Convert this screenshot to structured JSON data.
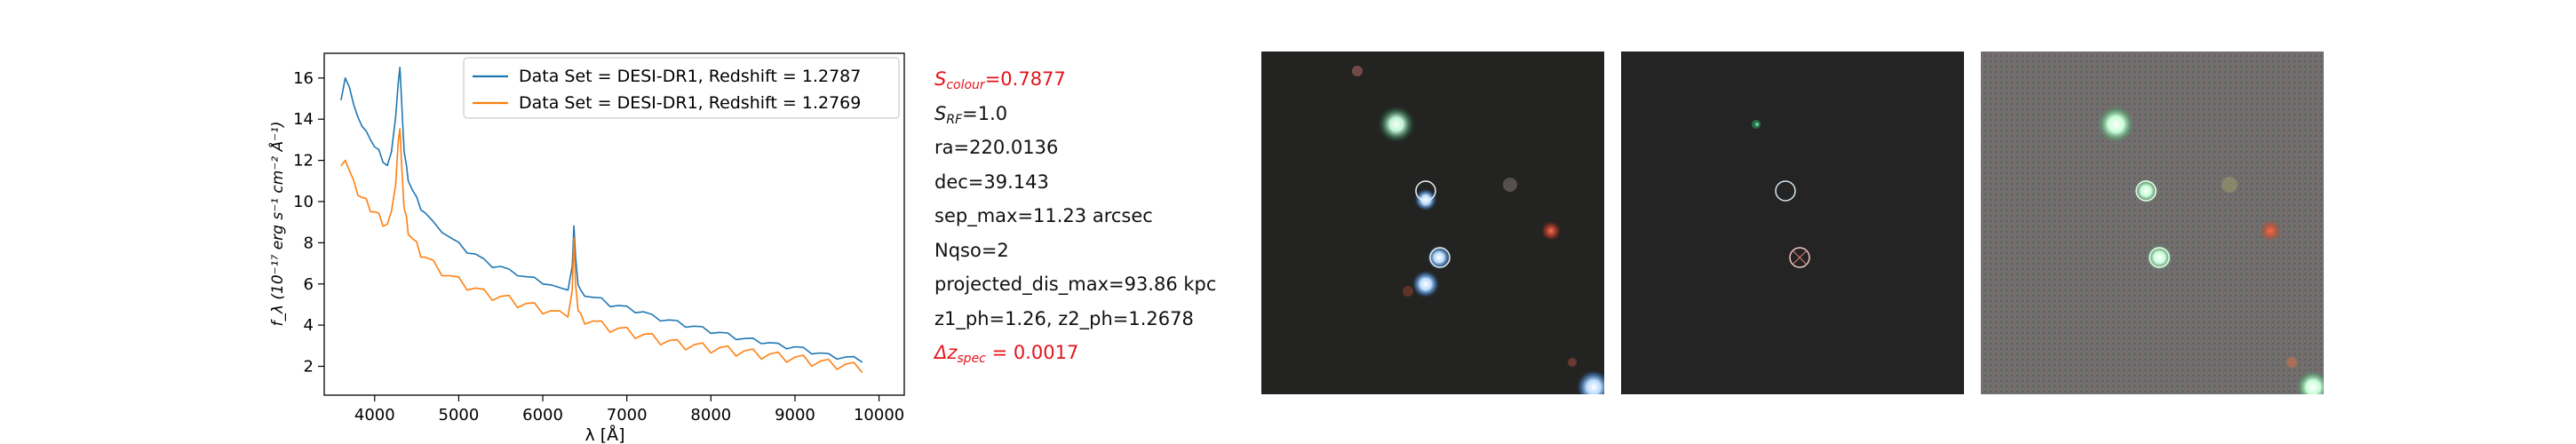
{
  "chart_data": {
    "type": "line",
    "xlabel": "λ [Å]",
    "ylabel": "f_λ (10⁻¹⁷ erg s⁻¹ cm⁻² Å⁻¹)",
    "xlim": [
      3400,
      10300
    ],
    "ylim": [
      0.6,
      17.2
    ],
    "xticks": [
      4000,
      5000,
      6000,
      7000,
      8000,
      9000,
      10000
    ],
    "yticks": [
      2,
      4,
      6,
      8,
      10,
      12,
      14,
      16
    ],
    "legend": "top-right",
    "grid": false,
    "series": [
      {
        "name": "Data Set = DESI-DR1, Redshift = 1.2787",
        "color": "#1f77b4",
        "x": [
          3600,
          3650,
          3700,
          3750,
          3800,
          3850,
          3900,
          3950,
          4000,
          4050,
          4100,
          4150,
          4200,
          4250,
          4280,
          4300,
          4320,
          4350,
          4380,
          4400,
          4450,
          4500,
          4550,
          4600,
          4700,
          4800,
          4900,
          5000,
          5100,
          5200,
          5300,
          5400,
          5500,
          5600,
          5700,
          5800,
          5900,
          6000,
          6100,
          6200,
          6300,
          6350,
          6370,
          6390,
          6420,
          6450,
          6500,
          6600,
          6700,
          6800,
          6900,
          7000,
          7100,
          7200,
          7300,
          7400,
          7500,
          7600,
          7700,
          7800,
          7900,
          8000,
          8100,
          8200,
          8300,
          8400,
          8500,
          8600,
          8700,
          8800,
          8900,
          9000,
          9100,
          9200,
          9300,
          9400,
          9500,
          9600,
          9700,
          9800
        ],
        "y": [
          14.8,
          16.1,
          15.5,
          14.6,
          14.2,
          13.6,
          13.3,
          13.1,
          12.6,
          12.4,
          12.0,
          11.7,
          12.3,
          14.2,
          15.7,
          16.4,
          15.0,
          12.4,
          11.6,
          11.1,
          10.5,
          10.1,
          9.7,
          9.4,
          8.9,
          8.6,
          8.2,
          7.9,
          7.6,
          7.4,
          7.1,
          6.9,
          6.8,
          6.6,
          6.5,
          6.3,
          6.2,
          6.1,
          5.9,
          5.7,
          5.8,
          6.8,
          8.7,
          7.4,
          5.9,
          5.6,
          5.5,
          5.3,
          5.2,
          5.0,
          4.9,
          4.8,
          4.7,
          4.6,
          4.4,
          4.3,
          4.2,
          4.1,
          4.0,
          3.9,
          3.8,
          3.7,
          3.6,
          3.5,
          3.4,
          3.3,
          3.25,
          3.2,
          3.1,
          3.0,
          2.95,
          2.9,
          2.8,
          2.7,
          2.6,
          2.5,
          2.45,
          2.4,
          2.35,
          2.3
        ]
      },
      {
        "name": "Data Set = DESI-DR1, Redshift = 1.2769",
        "color": "#ff7f0e",
        "x": [
          3600,
          3650,
          3700,
          3750,
          3800,
          3850,
          3900,
          3950,
          4000,
          4050,
          4100,
          4150,
          4200,
          4250,
          4280,
          4300,
          4320,
          4350,
          4380,
          4400,
          4450,
          4500,
          4550,
          4600,
          4700,
          4800,
          4900,
          5000,
          5100,
          5200,
          5300,
          5400,
          5500,
          5600,
          5700,
          5800,
          5900,
          6000,
          6100,
          6200,
          6300,
          6350,
          6370,
          6390,
          6420,
          6450,
          6500,
          6600,
          6700,
          6800,
          6900,
          7000,
          7100,
          7200,
          7300,
          7400,
          7500,
          7600,
          7700,
          7800,
          7900,
          8000,
          8100,
          8200,
          8300,
          8400,
          8500,
          8600,
          8700,
          8800,
          8900,
          9000,
          9100,
          9200,
          9300,
          9400,
          9500,
          9600,
          9700,
          9800
        ],
        "y": [
          11.5,
          12.2,
          11.4,
          10.8,
          10.5,
          10.1,
          9.9,
          9.7,
          9.4,
          9.2,
          9.0,
          8.8,
          9.3,
          11.0,
          12.8,
          13.3,
          12.0,
          9.6,
          9.0,
          8.6,
          8.1,
          7.8,
          7.5,
          7.2,
          6.9,
          6.6,
          6.3,
          6.1,
          5.9,
          5.7,
          5.5,
          5.4,
          5.3,
          5.2,
          5.05,
          4.95,
          4.85,
          4.75,
          4.6,
          4.45,
          4.6,
          5.6,
          8.0,
          6.2,
          4.6,
          4.35,
          4.25,
          4.1,
          3.95,
          3.85,
          3.75,
          3.65,
          3.55,
          3.45,
          3.35,
          3.25,
          3.15,
          3.05,
          3.0,
          2.95,
          2.9,
          2.85,
          2.8,
          2.75,
          2.7,
          2.65,
          2.6,
          2.55,
          2.5,
          2.45,
          2.4,
          2.35,
          2.3,
          2.2,
          2.15,
          2.1,
          2.05,
          2.0,
          1.95,
          1.9
        ]
      }
    ]
  },
  "info": {
    "s_colour_sym": "S",
    "s_colour_sub": "colour",
    "s_colour_val": "=0.7877",
    "s_rf_sym": "S",
    "s_rf_sub": "RF",
    "s_rf_val": "=1.0",
    "ra": "ra=220.0136",
    "dec": "dec=39.143",
    "sep_max": "sep_max=11.23 arcsec",
    "nqso": "Nqso=2",
    "projected": "projected_dis_max=93.86 kpc",
    "z_ph": "z1_ph=1.26, z2_ph=1.2678",
    "dz_sym": "Δz",
    "dz_sub": "spec",
    "dz_val": " = 0.0017"
  },
  "colors": {
    "highlight": "#e4131b",
    "series1": "#1f77b4",
    "series2": "#ff7f0e"
  }
}
